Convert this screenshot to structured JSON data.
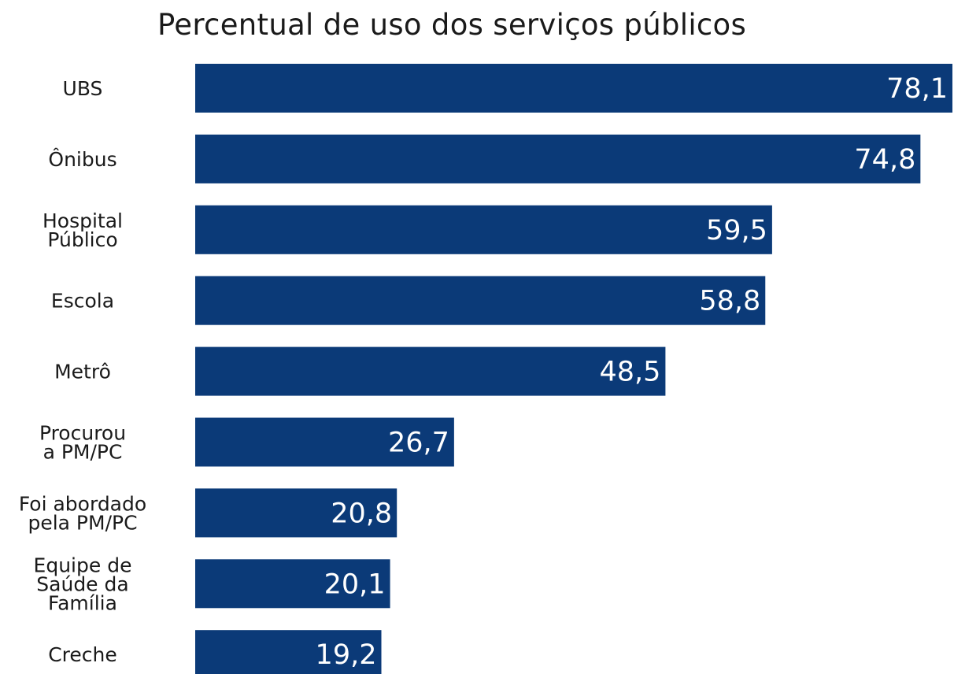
{
  "chart_data": {
    "type": "bar",
    "orientation": "horizontal",
    "title": "Percentual de uso dos serviços públicos",
    "categories": [
      [
        "UBS"
      ],
      [
        "Ônibus"
      ],
      [
        "Hospital",
        "Público"
      ],
      [
        "Escola"
      ],
      [
        "Metrô"
      ],
      [
        "Procurou",
        "a PM/PC"
      ],
      [
        "Foi abordado",
        "pela PM/PC"
      ],
      [
        "Equipe de",
        "Saúde da",
        "Família"
      ],
      [
        "Creche"
      ]
    ],
    "values": [
      78.1,
      74.8,
      59.5,
      58.8,
      48.5,
      26.7,
      20.8,
      20.1,
      19.2
    ],
    "value_labels": [
      "78,1",
      "74,8",
      "59,5",
      "58,8",
      "48,5",
      "26,7",
      "20,8",
      "20,1",
      "19,2"
    ],
    "xlim": [
      0,
      78.1
    ],
    "bar_color": "#0b3a78",
    "value_label_color": "#ffffff",
    "grid": false,
    "legend": "none"
  }
}
